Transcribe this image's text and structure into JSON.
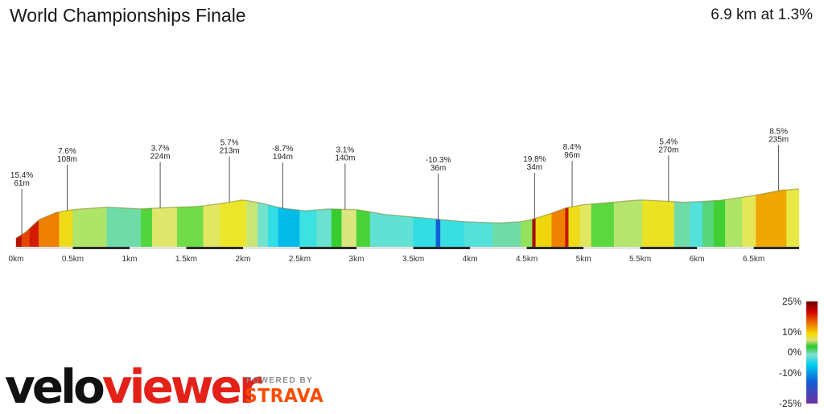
{
  "header": {
    "title": "World Championships Finale",
    "summary": "6.9 km at 1.3%"
  },
  "branding": {
    "logo_part1": "velo",
    "logo_part2": "viewer",
    "powered_by": "POWERED BY",
    "strava": "STRAVA",
    "logo_colors": {
      "velo": "#111111",
      "viewer": "#e32119",
      "strava": "#fc4c02"
    }
  },
  "legend": {
    "labels": [
      "25%",
      "10%",
      "0%",
      "-10%",
      "-25%"
    ]
  },
  "chart_data": {
    "type": "area",
    "xlabel": "",
    "ylabel": "",
    "xlim": [
      0,
      6.9
    ],
    "x_ticks": [
      "0km",
      "0.5km",
      "1km",
      "1.5km",
      "2km",
      "2.5km",
      "3km",
      "3.5km",
      "4km",
      "4.5km",
      "5km",
      "5.5km",
      "6km",
      "6.5km"
    ],
    "x_tick_values": [
      0,
      0.5,
      1,
      1.5,
      2,
      2.5,
      3,
      3.5,
      4,
      4.5,
      5,
      5.5,
      6,
      6.5
    ],
    "profile": {
      "x": [
        0,
        0.08,
        0.2,
        0.35,
        0.5,
        0.8,
        1.1,
        1.3,
        1.6,
        1.85,
        2.0,
        2.15,
        2.35,
        2.55,
        2.75,
        3.0,
        3.25,
        3.6,
        3.95,
        4.25,
        4.45,
        4.55,
        4.62,
        4.72,
        4.85,
        5.0,
        5.2,
        5.5,
        5.9,
        6.2,
        6.5,
        6.75,
        6.9
      ],
      "y": [
        61,
        70,
        91,
        103,
        108,
        112,
        109,
        111,
        113,
        119,
        124,
        119,
        110,
        106,
        109,
        108,
        100,
        94,
        88,
        86,
        88,
        92,
        96,
        102,
        111,
        116,
        119,
        124,
        120,
        123,
        131,
        140,
        142
      ]
    },
    "segments": [
      {
        "start": 0.0,
        "end": 0.05,
        "gradient": 18
      },
      {
        "start": 0.05,
        "end": 0.12,
        "gradient": 12
      },
      {
        "start": 0.12,
        "end": 0.2,
        "gradient": 15
      },
      {
        "start": 0.2,
        "end": 0.38,
        "gradient": 9
      },
      {
        "start": 0.38,
        "end": 0.5,
        "gradient": 5
      },
      {
        "start": 0.5,
        "end": 0.8,
        "gradient": 1.5
      },
      {
        "start": 0.8,
        "end": 1.1,
        "gradient": -1.2
      },
      {
        "start": 1.1,
        "end": 1.2,
        "gradient": 0.5
      },
      {
        "start": 1.2,
        "end": 1.42,
        "gradient": 2.5
      },
      {
        "start": 1.42,
        "end": 1.65,
        "gradient": 0.8
      },
      {
        "start": 1.65,
        "end": 1.8,
        "gradient": 2.8
      },
      {
        "start": 1.8,
        "end": 2.03,
        "gradient": 4.2
      },
      {
        "start": 2.03,
        "end": 2.13,
        "gradient": 1.8
      },
      {
        "start": 2.13,
        "end": 2.22,
        "gradient": -1.8
      },
      {
        "start": 2.22,
        "end": 2.31,
        "gradient": -3.5
      },
      {
        "start": 2.31,
        "end": 2.5,
        "gradient": -6.5
      },
      {
        "start": 2.5,
        "end": 2.65,
        "gradient": -3.0
      },
      {
        "start": 2.65,
        "end": 2.78,
        "gradient": -2.0
      },
      {
        "start": 2.78,
        "end": 2.87,
        "gradient": 0.2
      },
      {
        "start": 2.87,
        "end": 3.0,
        "gradient": 2.0
      },
      {
        "start": 3.0,
        "end": 3.12,
        "gradient": 0.4
      },
      {
        "start": 3.12,
        "end": 3.5,
        "gradient": -2.2
      },
      {
        "start": 3.5,
        "end": 3.7,
        "gradient": -3.5
      },
      {
        "start": 3.7,
        "end": 3.74,
        "gradient": -10.3
      },
      {
        "start": 3.74,
        "end": 3.95,
        "gradient": -3.2
      },
      {
        "start": 3.95,
        "end": 4.2,
        "gradient": -2.5
      },
      {
        "start": 4.2,
        "end": 4.45,
        "gradient": -1.2
      },
      {
        "start": 4.45,
        "end": 4.55,
        "gradient": 1.2
      },
      {
        "start": 4.55,
        "end": 4.58,
        "gradient": 19.8
      },
      {
        "start": 4.58,
        "end": 4.72,
        "gradient": 5.5
      },
      {
        "start": 4.72,
        "end": 4.84,
        "gradient": 9.0
      },
      {
        "start": 4.84,
        "end": 4.87,
        "gradient": 16.0
      },
      {
        "start": 4.87,
        "end": 4.97,
        "gradient": 5.0
      },
      {
        "start": 4.97,
        "end": 5.07,
        "gradient": 2.8
      },
      {
        "start": 5.07,
        "end": 5.27,
        "gradient": 0.6
      },
      {
        "start": 5.27,
        "end": 5.52,
        "gradient": 1.6
      },
      {
        "start": 5.52,
        "end": 5.8,
        "gradient": 4.5
      },
      {
        "start": 5.8,
        "end": 5.94,
        "gradient": -1.2
      },
      {
        "start": 5.94,
        "end": 6.05,
        "gradient": -2.5
      },
      {
        "start": 6.05,
        "end": 6.15,
        "gradient": -0.8
      },
      {
        "start": 6.15,
        "end": 6.25,
        "gradient": 0.3
      },
      {
        "start": 6.25,
        "end": 6.4,
        "gradient": 1.5
      },
      {
        "start": 6.4,
        "end": 6.52,
        "gradient": 3.0
      },
      {
        "start": 6.52,
        "end": 6.79,
        "gradient": 7.5
      },
      {
        "start": 6.79,
        "end": 6.9,
        "gradient": 3.5
      }
    ],
    "annotations": [
      {
        "x": 0.05,
        "gradient_label": "15.4%",
        "dist_label": "61m"
      },
      {
        "x": 0.45,
        "gradient_label": "7.6%",
        "dist_label": "108m"
      },
      {
        "x": 1.27,
        "gradient_label": "3.7%",
        "dist_label": "224m"
      },
      {
        "x": 1.88,
        "gradient_label": "5.7%",
        "dist_label": "213m"
      },
      {
        "x": 2.35,
        "gradient_label": "-8.7%",
        "dist_label": "194m"
      },
      {
        "x": 2.9,
        "gradient_label": "3.1%",
        "dist_label": "140m"
      },
      {
        "x": 3.72,
        "gradient_label": "-10.3%",
        "dist_label": "36m"
      },
      {
        "x": 4.57,
        "gradient_label": "19.8%",
        "dist_label": "34m"
      },
      {
        "x": 4.9,
        "gradient_label": "8.4%",
        "dist_label": "96m"
      },
      {
        "x": 5.75,
        "gradient_label": "5.4%",
        "dist_label": "270m"
      },
      {
        "x": 6.72,
        "gradient_label": "8.5%",
        "dist_label": "235m"
      }
    ]
  }
}
